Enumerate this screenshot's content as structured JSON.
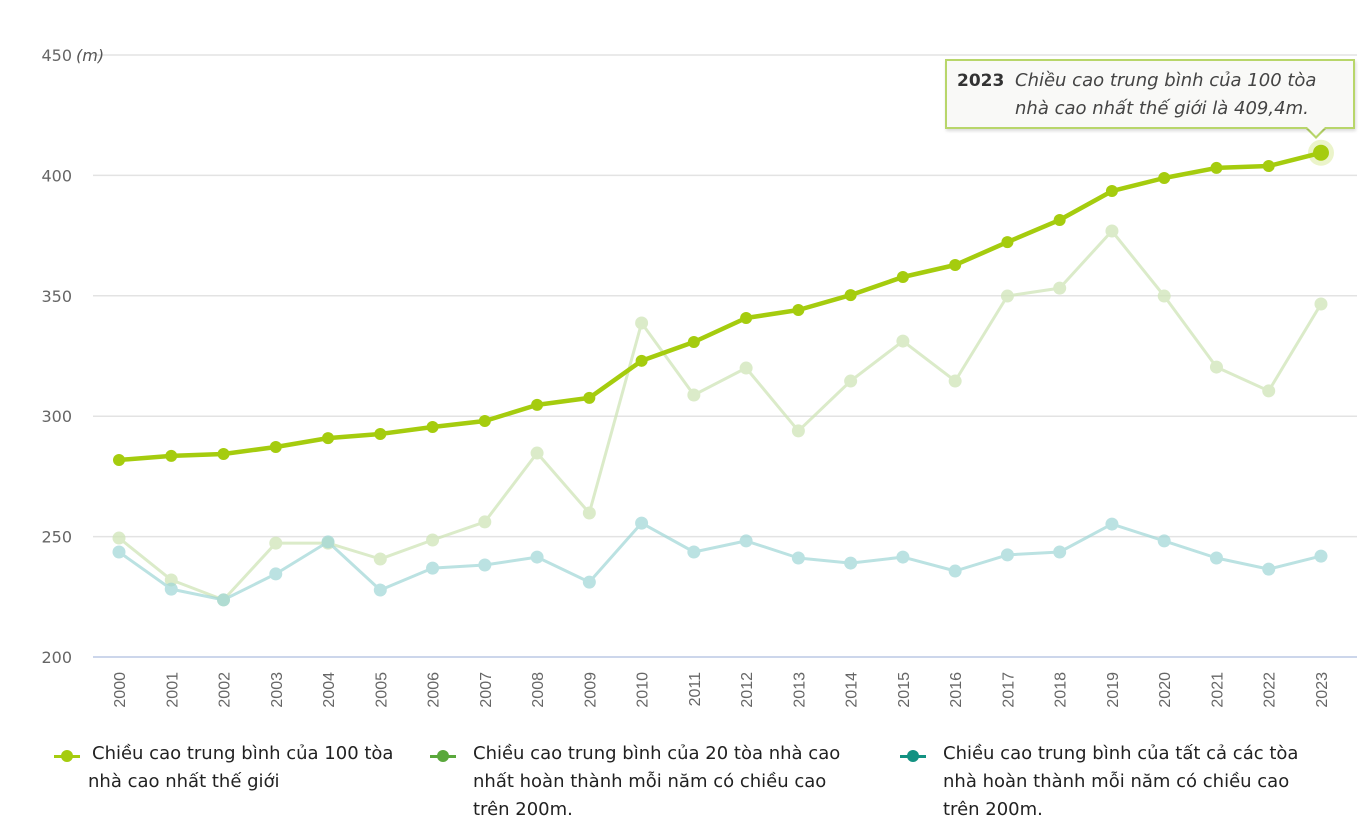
{
  "chart_data": {
    "type": "line",
    "title": "",
    "xlabel": "",
    "ylabel": "(m)",
    "ylim": [
      200,
      450
    ],
    "yticks": [
      200,
      250,
      300,
      350,
      400,
      450
    ],
    "grid": true,
    "legend_position": "bottom",
    "categories": [
      "2000",
      "2001",
      "2002",
      "2003",
      "2004",
      "2005",
      "2006",
      "2007",
      "2008",
      "2009",
      "2010",
      "2011",
      "2012",
      "2013",
      "2014",
      "2015",
      "2016",
      "2017",
      "2018",
      "2019",
      "2020",
      "2021",
      "2022",
      "2023"
    ],
    "series": [
      {
        "name": "Chiều cao trung bình của 100 tòa nhà cao nhất thế giới",
        "color": "#a5cc0e",
        "highlighted": true,
        "values": [
          281.8,
          283.5,
          284.3,
          287.2,
          290.9,
          292.6,
          295.5,
          298.0,
          304.7,
          307.6,
          323.0,
          330.8,
          340.8,
          344.1,
          350.3,
          357.8,
          362.8,
          372.3,
          381.5,
          393.5,
          398.9,
          403.1,
          403.9,
          409.4
        ]
      },
      {
        "name": "Chiều cao trung bình của 20 tòa nhà cao nhất hoàn thành mỗi năm có chiều cao trên 200m.",
        "color": "#5aa83c",
        "highlighted": false,
        "values": [
          249.4,
          232.0,
          223.7,
          247.3,
          247.3,
          240.7,
          248.6,
          256.1,
          284.7,
          259.8,
          338.7,
          308.8,
          320.0,
          293.9,
          314.6,
          331.2,
          314.6,
          349.9,
          353.2,
          376.9,
          349.9,
          320.4,
          310.5,
          346.6
        ]
      },
      {
        "name": "Chiều cao trung bình của tất cả các tòa nhà hoàn thành mỗi năm có chiều cao trên 200m.",
        "color": "#139282",
        "highlighted": false,
        "values": [
          243.6,
          228.2,
          223.7,
          234.5,
          247.8,
          227.8,
          236.9,
          238.2,
          241.5,
          231.1,
          255.6,
          243.6,
          248.2,
          241.1,
          239.0,
          241.5,
          235.7,
          242.4,
          243.6,
          255.2,
          248.2,
          241.1,
          236.5,
          241.9
        ]
      }
    ],
    "tooltip": {
      "year": "2023",
      "text_line1": "Chiều cao trung bình của 100 tòa",
      "text_line2": "nhà cao nhất thế giới là 409,4m."
    }
  },
  "legend": [
    {
      "label": "Chiều cao trung bình của 100 tòa",
      "label_line2": "nhà cao nhất thế giới",
      "label_line3": "",
      "color": "#a5cc0e"
    },
    {
      "label": "Chiều cao trung bình của 20 tòa nhà cao",
      "label_line2": "nhất hoàn thành mỗi năm có chiều cao",
      "label_line3": "trên 200m.",
      "color": "#5aa83c"
    },
    {
      "label": "Chiều cao trung bình của tất cả các tòa",
      "label_line2": "nhà hoàn thành mỗi năm có chiều cao",
      "label_line3": "trên 200m.",
      "color": "#139282"
    }
  ]
}
